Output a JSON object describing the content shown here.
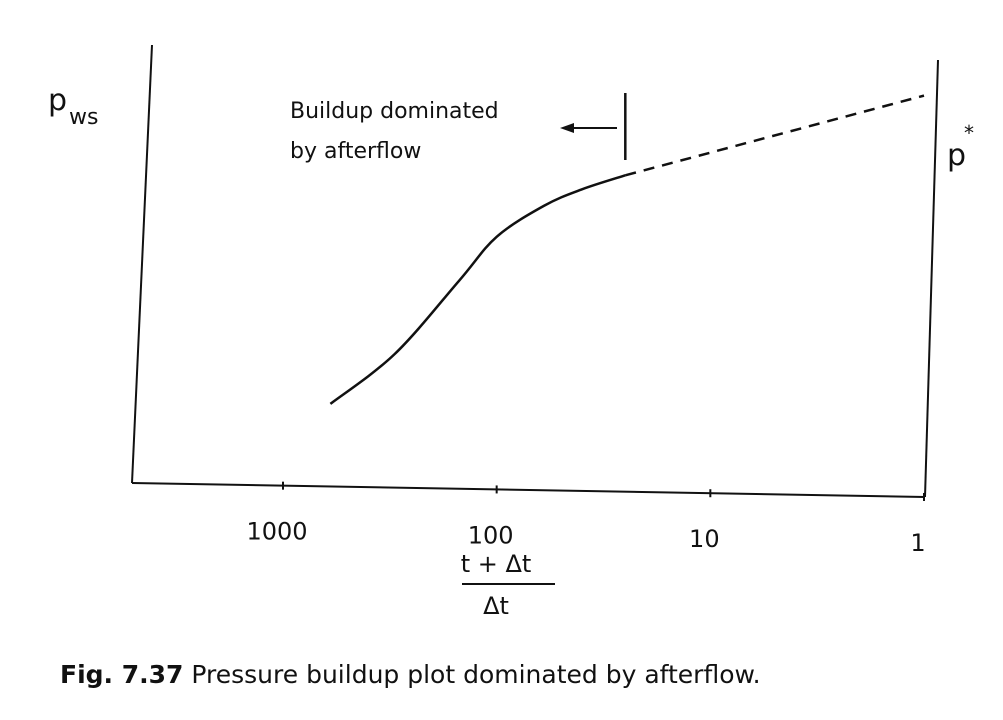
{
  "figure": {
    "number": "Fig. 7.37",
    "caption": "Pressure buildup plot dominated by afterflow."
  },
  "chart_data": {
    "type": "line",
    "title": "",
    "ylabel_main": "p",
    "ylabel_sub": "ws",
    "xlabel_numerator": "t + Δt",
    "xlabel_denominator": "Δt",
    "x_scale": "log",
    "x_reversed": true,
    "xlim": [
      2000,
      1
    ],
    "x_ticks": [
      1000,
      100,
      10,
      1
    ],
    "x_tick_labels": [
      "1000",
      "100",
      "10",
      "1"
    ],
    "ylim": [
      0,
      10
    ],
    "y_ticks": [],
    "grid": false,
    "series": [
      {
        "style": "solid",
        "points": [
          {
            "x": 600,
            "y": 1.05
          },
          {
            "x": 300,
            "y": 2.25
          },
          {
            "x": 150,
            "y": 4.0
          },
          {
            "x": 100,
            "y": 5.05
          },
          {
            "x": 60,
            "y": 5.8
          },
          {
            "x": 40,
            "y": 6.2
          },
          {
            "x": 25,
            "y": 6.55
          }
        ]
      },
      {
        "style": "dashed",
        "points": [
          {
            "x": 25,
            "y": 6.55
          },
          {
            "x": 1,
            "y": 8.55
          }
        ]
      }
    ],
    "annotations": {
      "extrapolated_label_main": "p",
      "extrapolated_label_sup": "*",
      "region_text_line1": "Buildup dominated",
      "region_text_line2": "by afterflow",
      "region_boundary_x": 25
    }
  }
}
